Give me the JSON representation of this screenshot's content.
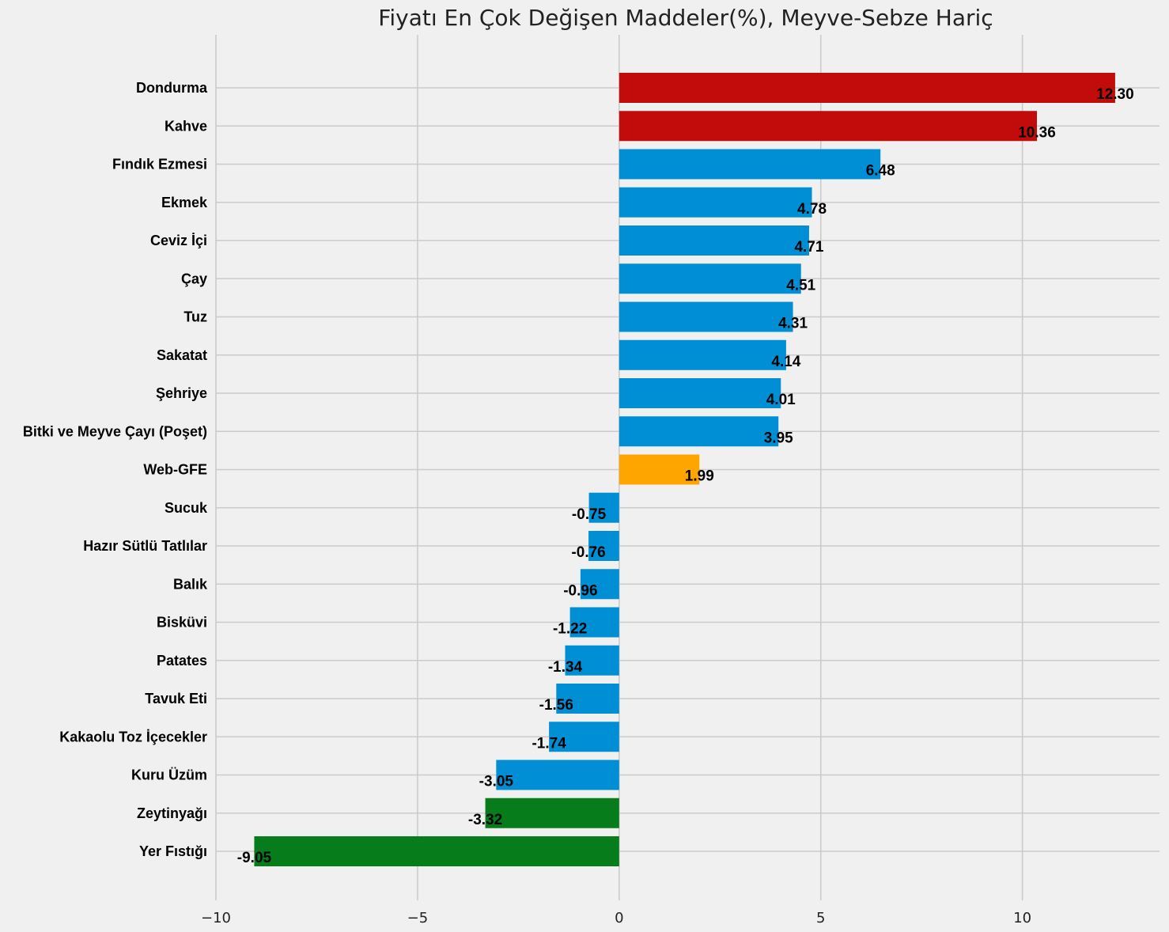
{
  "chart_data": {
    "type": "bar",
    "orientation": "horizontal",
    "title": "Fiyatı En Çok Değişen Maddeler(%), Meyve-Sebze Hariç",
    "xlabel": "",
    "ylabel": "",
    "xlim": [
      -10,
      13.4
    ],
    "xticks": [
      -10,
      -5,
      0,
      5,
      10
    ],
    "xtick_labels": [
      "−10",
      "−5",
      "0",
      "5",
      "10"
    ],
    "grid": true,
    "categories": [
      "Dondurma",
      "Kahve",
      "Fındık Ezmesi",
      "Ekmek",
      "Ceviz İçi",
      "Çay",
      "Tuz",
      "Sakatat",
      "Şehriye",
      "Bitki ve Meyve Çayı (Poşet)",
      "Web-GFE",
      "Sucuk",
      "Hazır Sütlü Tatlılar",
      "Balık",
      "Bisküvi",
      "Patates",
      "Tavuk Eti",
      "Kakaolu Toz İçecekler",
      "Kuru Üzüm",
      "Zeytinyağı",
      "Yer Fıstığı"
    ],
    "values": [
      12.3,
      10.36,
      6.48,
      4.78,
      4.71,
      4.51,
      4.31,
      4.14,
      4.01,
      3.95,
      1.99,
      -0.75,
      -0.76,
      -0.96,
      -1.22,
      -1.34,
      -1.56,
      -1.74,
      -3.05,
      -3.32,
      -9.05
    ],
    "value_labels": [
      "12.30",
      "10.36",
      "6.48",
      "4.78",
      "4.71",
      "4.51",
      "4.31",
      "4.14",
      "4.01",
      "3.95",
      "1.99",
      "-0.75",
      "-0.76",
      "-0.96",
      "-1.22",
      "-1.34",
      "-1.56",
      "-1.74",
      "-3.05",
      "-3.32",
      "-9.05"
    ],
    "bar_colors": [
      "#c20c0c",
      "#c20c0c",
      "#008fd5",
      "#008fd5",
      "#008fd5",
      "#008fd5",
      "#008fd5",
      "#008fd5",
      "#008fd5",
      "#008fd5",
      "#ffa500",
      "#008fd5",
      "#008fd5",
      "#008fd5",
      "#008fd5",
      "#008fd5",
      "#008fd5",
      "#008fd5",
      "#008fd5",
      "#067d1a",
      "#067d1a"
    ]
  },
  "colors": {
    "background": "#f0f0f0",
    "grid": "#cbcbcb"
  }
}
